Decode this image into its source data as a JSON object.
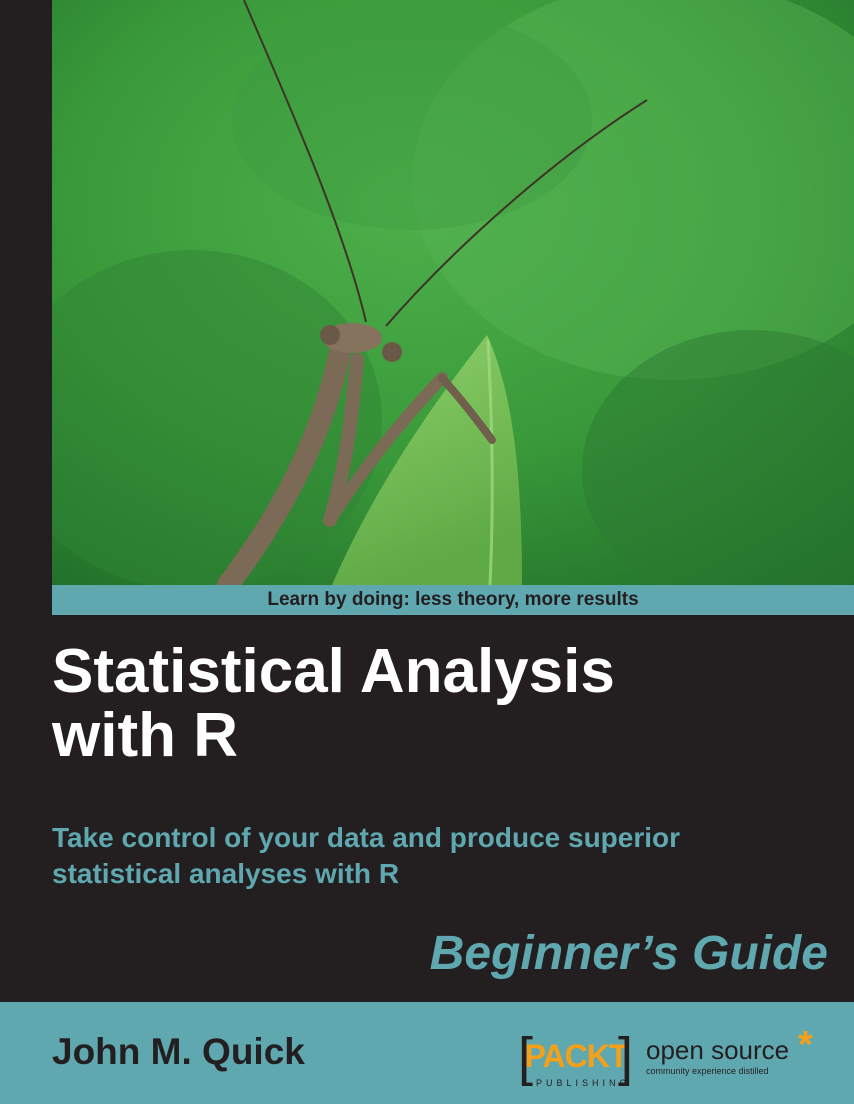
{
  "cover": {
    "tagline": "Learn by doing: less theory, more results",
    "title_lines": [
      "Statistical Analysis",
      "with R"
    ],
    "subtitle_lines": [
      "Take control of your data and produce superior",
      "statistical analyses with R"
    ],
    "series": "Beginner’s Guide",
    "author": "John M. Quick"
  },
  "publisher": {
    "bracket_left": "[",
    "bracket_right": "]",
    "name": "PACKT",
    "sub": "PUBLISHING",
    "open_source": "open source",
    "open_source_mark": "*",
    "open_source_tag": "community experience distilled"
  },
  "colors": {
    "background": "#231f20",
    "accent_teal": "#5fa8b0",
    "packt_orange": "#f6a01a",
    "photo_green": "#3f8f35"
  },
  "icons": {
    "cover_photo": "praying-mantis-photo",
    "publisher_logo": "packt-logo",
    "open_source_mark": "asterisk-icon"
  }
}
